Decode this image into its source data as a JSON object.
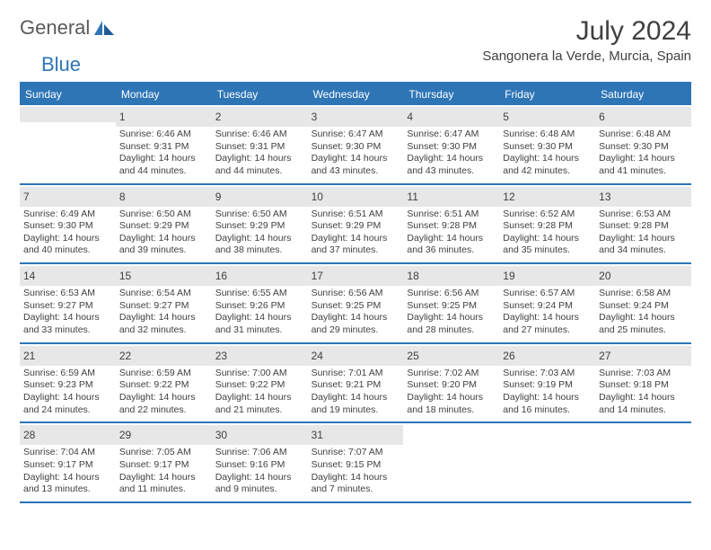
{
  "logo": {
    "general": "General",
    "blue": "Blue"
  },
  "title": {
    "month": "July 2024",
    "location": "Sangonera la Verde, Murcia, Spain"
  },
  "colors": {
    "accent": "#2e75b6",
    "daybar": "#e7e7e7",
    "text": "#404040",
    "logo_gray": "#5a5a5a"
  },
  "weekdays": [
    "Sunday",
    "Monday",
    "Tuesday",
    "Wednesday",
    "Thursday",
    "Friday",
    "Saturday"
  ],
  "calendar": {
    "first_day_col": 1,
    "days": [
      {
        "d": 1,
        "sr": "6:46 AM",
        "ss": "9:31 PM",
        "dl": "14 hours and 44 minutes."
      },
      {
        "d": 2,
        "sr": "6:46 AM",
        "ss": "9:31 PM",
        "dl": "14 hours and 44 minutes."
      },
      {
        "d": 3,
        "sr": "6:47 AM",
        "ss": "9:30 PM",
        "dl": "14 hours and 43 minutes."
      },
      {
        "d": 4,
        "sr": "6:47 AM",
        "ss": "9:30 PM",
        "dl": "14 hours and 43 minutes."
      },
      {
        "d": 5,
        "sr": "6:48 AM",
        "ss": "9:30 PM",
        "dl": "14 hours and 42 minutes."
      },
      {
        "d": 6,
        "sr": "6:48 AM",
        "ss": "9:30 PM",
        "dl": "14 hours and 41 minutes."
      },
      {
        "d": 7,
        "sr": "6:49 AM",
        "ss": "9:30 PM",
        "dl": "14 hours and 40 minutes."
      },
      {
        "d": 8,
        "sr": "6:50 AM",
        "ss": "9:29 PM",
        "dl": "14 hours and 39 minutes."
      },
      {
        "d": 9,
        "sr": "6:50 AM",
        "ss": "9:29 PM",
        "dl": "14 hours and 38 minutes."
      },
      {
        "d": 10,
        "sr": "6:51 AM",
        "ss": "9:29 PM",
        "dl": "14 hours and 37 minutes."
      },
      {
        "d": 11,
        "sr": "6:51 AM",
        "ss": "9:28 PM",
        "dl": "14 hours and 36 minutes."
      },
      {
        "d": 12,
        "sr": "6:52 AM",
        "ss": "9:28 PM",
        "dl": "14 hours and 35 minutes."
      },
      {
        "d": 13,
        "sr": "6:53 AM",
        "ss": "9:28 PM",
        "dl": "14 hours and 34 minutes."
      },
      {
        "d": 14,
        "sr": "6:53 AM",
        "ss": "9:27 PM",
        "dl": "14 hours and 33 minutes."
      },
      {
        "d": 15,
        "sr": "6:54 AM",
        "ss": "9:27 PM",
        "dl": "14 hours and 32 minutes."
      },
      {
        "d": 16,
        "sr": "6:55 AM",
        "ss": "9:26 PM",
        "dl": "14 hours and 31 minutes."
      },
      {
        "d": 17,
        "sr": "6:56 AM",
        "ss": "9:25 PM",
        "dl": "14 hours and 29 minutes."
      },
      {
        "d": 18,
        "sr": "6:56 AM",
        "ss": "9:25 PM",
        "dl": "14 hours and 28 minutes."
      },
      {
        "d": 19,
        "sr": "6:57 AM",
        "ss": "9:24 PM",
        "dl": "14 hours and 27 minutes."
      },
      {
        "d": 20,
        "sr": "6:58 AM",
        "ss": "9:24 PM",
        "dl": "14 hours and 25 minutes."
      },
      {
        "d": 21,
        "sr": "6:59 AM",
        "ss": "9:23 PM",
        "dl": "14 hours and 24 minutes."
      },
      {
        "d": 22,
        "sr": "6:59 AM",
        "ss": "9:22 PM",
        "dl": "14 hours and 22 minutes."
      },
      {
        "d": 23,
        "sr": "7:00 AM",
        "ss": "9:22 PM",
        "dl": "14 hours and 21 minutes."
      },
      {
        "d": 24,
        "sr": "7:01 AM",
        "ss": "9:21 PM",
        "dl": "14 hours and 19 minutes."
      },
      {
        "d": 25,
        "sr": "7:02 AM",
        "ss": "9:20 PM",
        "dl": "14 hours and 18 minutes."
      },
      {
        "d": 26,
        "sr": "7:03 AM",
        "ss": "9:19 PM",
        "dl": "14 hours and 16 minutes."
      },
      {
        "d": 27,
        "sr": "7:03 AM",
        "ss": "9:18 PM",
        "dl": "14 hours and 14 minutes."
      },
      {
        "d": 28,
        "sr": "7:04 AM",
        "ss": "9:17 PM",
        "dl": "14 hours and 13 minutes."
      },
      {
        "d": 29,
        "sr": "7:05 AM",
        "ss": "9:17 PM",
        "dl": "14 hours and 11 minutes."
      },
      {
        "d": 30,
        "sr": "7:06 AM",
        "ss": "9:16 PM",
        "dl": "14 hours and 9 minutes."
      },
      {
        "d": 31,
        "sr": "7:07 AM",
        "ss": "9:15 PM",
        "dl": "14 hours and 7 minutes."
      }
    ]
  },
  "labels": {
    "sunrise": "Sunrise:",
    "sunset": "Sunset:",
    "daylight": "Daylight:"
  }
}
